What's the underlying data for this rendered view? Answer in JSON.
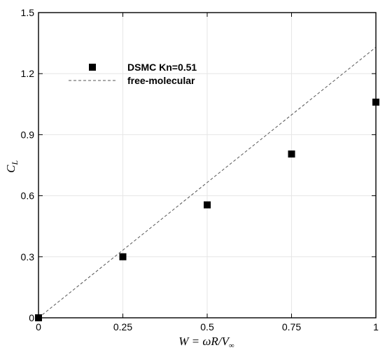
{
  "chart_data": {
    "type": "scatter",
    "x_ticks": [
      "0",
      "0.25",
      "0.5",
      "0.75",
      "1"
    ],
    "x_tick_values": [
      0,
      0.25,
      0.5,
      0.75,
      1
    ],
    "y_ticks": [
      "0",
      "0.3",
      "0.6",
      "0.9",
      "1.2",
      "1.5"
    ],
    "y_tick_values": [
      0,
      0.3,
      0.6,
      0.9,
      1.2,
      1.5
    ],
    "xlim": [
      0,
      1
    ],
    "ylim": [
      0,
      1.5
    ],
    "xlabel": "W = ωR/V∞",
    "ylabel": "C_L",
    "grid": true,
    "legend_position": "upper-left",
    "series": [
      {
        "name": "DSMC Kn=0.51",
        "style": "square-markers",
        "color": "#000000",
        "x": [
          0,
          0.25,
          0.5,
          0.75,
          1
        ],
        "y": [
          0.0,
          0.3,
          0.555,
          0.805,
          1.06
        ]
      },
      {
        "name": "free-molecular",
        "style": "dashed-line",
        "color": "#555555",
        "x": [
          0,
          1
        ],
        "y": [
          0.0,
          1.33
        ]
      }
    ]
  }
}
